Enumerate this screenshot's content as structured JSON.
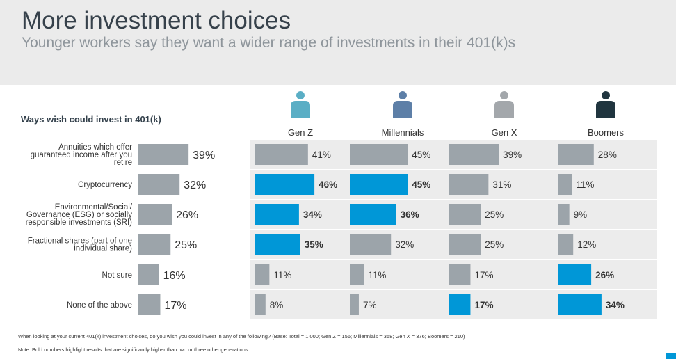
{
  "title": "More investment choices",
  "subtitle": "Younger workers say they want a wider range of investments in their 401(k)s",
  "heading": "Ways wish could invest in 401(k)",
  "footer": {
    "question": "When looking at your current 401(k) investment choices, do you wish you could invest in any of the following? (Base: Total = 1,000; Gen Z = 156; Millennials = 358; Gen X = 376; Boomers = 210)",
    "note": "Note: Bold numbers highlight results that are significantly higher than two or three other generations."
  },
  "colors": {
    "bar_gray": "#9ca4aa",
    "bar_highlight": "#0097d7",
    "row_bg": "#ececec",
    "person_gen_z": "#5aaec5",
    "person_millennials": "#5d7fa7",
    "person_gen_x": "#a3a7ab",
    "person_boomers": "#20353f"
  },
  "chart_data": {
    "type": "bar",
    "categories": [
      [
        "Annuities which offer",
        "guaranteed income after you",
        "retire"
      ],
      [
        "Cryptocurrency"
      ],
      [
        "Environmental/Social/",
        "Governance (ESG) or socially",
        "responsible investments (SRI)"
      ],
      [
        "Fractional shares (part of one",
        "individual share)"
      ],
      [
        "Not sure"
      ],
      [
        "None of the above"
      ]
    ],
    "total": {
      "values": [
        39,
        32,
        26,
        25,
        16,
        17
      ],
      "labels": [
        "39%",
        "32%",
        "26%",
        "25%",
        "16%",
        "17%"
      ]
    },
    "series": [
      {
        "name": "Gen Z",
        "icon": "person-icon",
        "values": [
          41,
          46,
          34,
          35,
          11,
          8
        ],
        "labels": [
          "41%",
          "46%",
          "34%",
          "35%",
          "11%",
          "8%"
        ],
        "bold": [
          false,
          true,
          true,
          true,
          false,
          false
        ]
      },
      {
        "name": "Millennials",
        "icon": "person-icon",
        "values": [
          45,
          45,
          36,
          32,
          11,
          7
        ],
        "labels": [
          "45%",
          "45%",
          "36%",
          "32%",
          "11%",
          "7%"
        ],
        "bold": [
          false,
          true,
          true,
          false,
          false,
          false
        ]
      },
      {
        "name": "Gen X",
        "icon": "person-icon",
        "values": [
          39,
          31,
          25,
          25,
          17,
          17
        ],
        "labels": [
          "39%",
          "31%",
          "25%",
          "25%",
          "17%",
          "17%"
        ],
        "bold": [
          false,
          false,
          false,
          false,
          false,
          true
        ]
      },
      {
        "name": "Boomers",
        "icon": "person-icon",
        "values": [
          28,
          11,
          9,
          12,
          26,
          34
        ],
        "labels": [
          "28%",
          "11%",
          "9%",
          "12%",
          "26%",
          "34%"
        ],
        "bold": [
          false,
          false,
          false,
          false,
          true,
          true
        ]
      }
    ]
  }
}
